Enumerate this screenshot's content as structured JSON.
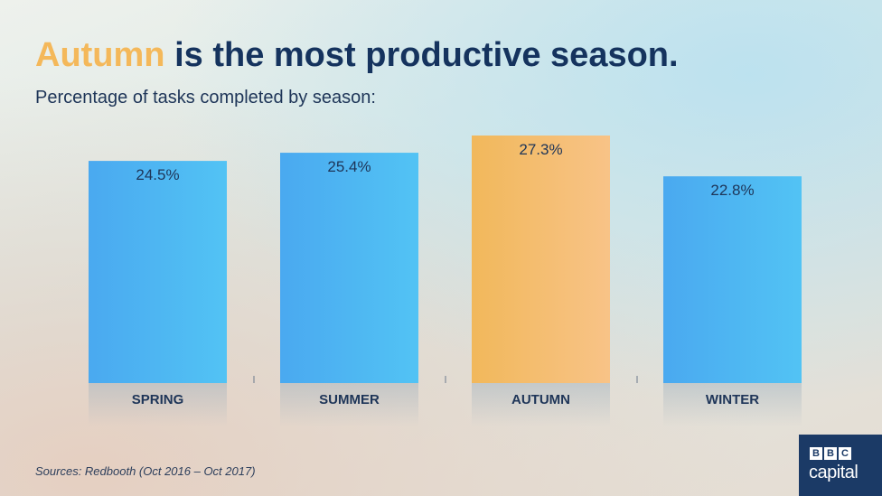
{
  "header": {
    "title_highlight": "Autumn",
    "title_rest": " is the most productive season.",
    "subtitle": "Percentage of tasks completed by season:"
  },
  "footer": {
    "source": "Sources: Redbooth (Oct 2016 – Oct 2017)"
  },
  "logo": {
    "letters": [
      "B",
      "B",
      "C"
    ],
    "word": "capital"
  },
  "colors": {
    "bar": "#4fb2f2",
    "bar_highlight": "#f4bc62",
    "label": "#1e3558"
  },
  "chart_data": {
    "type": "bar",
    "categories": [
      "SPRING",
      "SUMMER",
      "AUTUMN",
      "WINTER"
    ],
    "values": [
      24.5,
      25.4,
      27.3,
      22.8
    ],
    "value_labels": [
      "24.5%",
      "25.4%",
      "27.3%",
      "22.8%"
    ],
    "highlight_index": 2,
    "ylim": [
      0,
      27.3
    ],
    "grid": false,
    "legend": "none"
  }
}
